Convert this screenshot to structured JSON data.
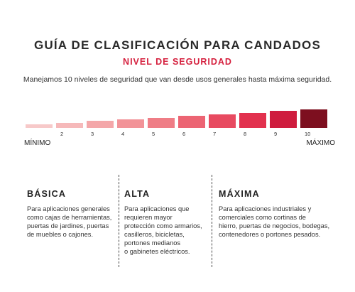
{
  "header": {
    "title": "GUÍA DE CLASIFICACIÓN PARA CANDADOS",
    "subtitle": "NIVEL DE SEGURIDAD"
  },
  "intro": "Manejamos 10 niveles de seguridad que van desde usos generales hasta máxima seguridad.",
  "scale": {
    "min_label": "MÍNIMO",
    "max_label": "MÁXIMO",
    "levels": [
      {
        "number": "",
        "color": "#f7c9c9"
      },
      {
        "number": "2",
        "color": "#f6b9ba"
      },
      {
        "number": "3",
        "color": "#f4a7a9"
      },
      {
        "number": "4",
        "color": "#f29398"
      },
      {
        "number": "5",
        "color": "#ef7d86"
      },
      {
        "number": "6",
        "color": "#ec6473"
      },
      {
        "number": "7",
        "color": "#e84a60"
      },
      {
        "number": "8",
        "color": "#e2314e"
      },
      {
        "number": "9",
        "color": "#cf1c3e"
      },
      {
        "number": "10",
        "color": "#7d0f1f"
      }
    ]
  },
  "categories": [
    {
      "name": "BÁSICA",
      "description": "Para aplicaciones generales\ncomo cajas de herramientas,\npuertas de jardines, puertas\nde muebles o cajones."
    },
    {
      "name": "ALTA",
      "description": "Para aplicaciones que\nrequieren mayor\nprotección como armarios,\ncasilleros, bicicletas,\nportones medianos\no gabinetes eléctricos."
    },
    {
      "name": "MÁXIMA",
      "description": "Para aplicaciones industriales y\ncomerciales como cortinas de\nhierro, puertas de negocios, bodegas,\ncontenedores o portones pesados."
    }
  ]
}
